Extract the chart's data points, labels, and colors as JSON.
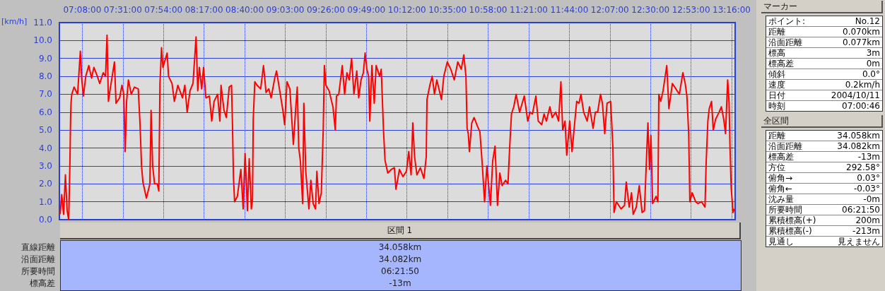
{
  "chart_data": [
    {
      "type": "line",
      "ylabel": "[km/h]",
      "color": "#ff0000",
      "marker": "none",
      "line_style": "solid",
      "grid": true,
      "xlim": [
        6.917,
        13.3
      ],
      "ylim": [
        0,
        11
      ],
      "xticks": [
        {
          "value": 7.1333,
          "label": "07:08:00"
        },
        {
          "value": 7.5167,
          "label": "07:31:00"
        },
        {
          "value": 7.9,
          "label": "07:54:00"
        },
        {
          "value": 8.2833,
          "label": "08:17:00"
        },
        {
          "value": 8.6667,
          "label": "08:40:00"
        },
        {
          "value": 9.05,
          "label": "09:03:00"
        },
        {
          "value": 9.4333,
          "label": "09:26:00"
        },
        {
          "value": 9.8167,
          "label": "09:49:00"
        },
        {
          "value": 10.2,
          "label": "10:12:00"
        },
        {
          "value": 10.5833,
          "label": "10:35:00"
        },
        {
          "value": 10.9667,
          "label": "10:58:00"
        },
        {
          "value": 11.35,
          "label": "11:21:00"
        },
        {
          "value": 11.7333,
          "label": "11:44:00"
        },
        {
          "value": 12.1167,
          "label": "12:07:00"
        },
        {
          "value": 12.5,
          "label": "12:30:00"
        },
        {
          "value": 12.8833,
          "label": "12:53:00"
        },
        {
          "value": 13.2667,
          "label": "13:16:00"
        }
      ],
      "yticks": [
        {
          "value": 0,
          "label": "0.0"
        },
        {
          "value": 1,
          "label": "1.0"
        },
        {
          "value": 2,
          "label": "2.0"
        },
        {
          "value": 3,
          "label": "3.0"
        },
        {
          "value": 4,
          "label": "4.0"
        },
        {
          "value": 5,
          "label": "5.0"
        },
        {
          "value": 6,
          "label": "6.0"
        },
        {
          "value": 7,
          "label": "7.0"
        },
        {
          "value": 8,
          "label": "8.0"
        },
        {
          "value": 9,
          "label": "9.0"
        },
        {
          "value": 10,
          "label": "10.0"
        },
        {
          "value": 11,
          "label": "11.0"
        }
      ],
      "x": [
        6.924,
        6.939,
        6.957,
        6.974,
        6.99,
        7.005,
        7.016,
        7.023,
        7.027,
        7.034,
        7.056,
        7.089,
        7.115,
        7.129,
        7.144,
        7.166,
        7.195,
        7.221,
        7.243,
        7.276,
        7.298,
        7.331,
        7.353,
        7.367,
        7.38,
        7.397,
        7.437,
        7.452,
        7.486,
        7.508,
        7.525,
        7.538,
        7.552,
        7.569,
        7.596,
        7.626,
        7.662,
        7.679,
        7.693,
        7.706,
        7.739,
        7.772,
        7.783,
        7.798,
        7.816,
        7.842,
        7.856,
        7.867,
        7.882,
        7.895,
        7.935,
        7.948,
        7.981,
        8.003,
        8.036,
        8.08,
        8.102,
        8.124,
        8.151,
        8.179,
        8.208,
        8.224,
        8.239,
        8.261,
        8.279,
        8.301,
        8.334,
        8.356,
        8.378,
        8.411,
        8.433,
        8.444,
        8.472,
        8.494,
        8.521,
        8.543,
        8.552,
        8.561,
        8.572,
        8.598,
        8.631,
        8.653,
        8.671,
        8.693,
        8.71,
        8.73,
        8.741,
        8.748,
        8.763,
        8.785,
        8.818,
        8.845,
        8.869,
        8.895,
        8.917,
        8.951,
        8.968,
        9.001,
        9.028,
        9.045,
        9.067,
        9.094,
        9.127,
        9.149,
        9.164,
        9.178,
        9.193,
        9.215,
        9.226,
        9.244,
        9.274,
        9.292,
        9.314,
        9.336,
        9.349,
        9.369,
        9.391,
        9.409,
        9.42,
        9.435,
        9.464,
        9.501,
        9.523,
        9.534,
        9.556,
        9.589,
        9.611,
        9.633,
        9.655,
        9.677,
        9.699,
        9.726,
        9.744,
        9.766,
        9.788,
        9.805,
        9.821,
        9.838,
        9.849,
        9.869,
        9.891,
        9.909,
        9.942,
        9.957,
        9.979,
        9.993,
        10.019,
        10.052,
        10.081,
        10.096,
        10.129,
        10.162,
        10.195,
        10.217,
        10.239,
        10.255,
        10.272,
        10.294,
        10.327,
        10.36,
        10.382,
        10.389,
        10.416,
        10.438,
        10.46,
        10.482,
        10.526,
        10.548,
        10.581,
        10.614,
        10.647,
        10.68,
        10.713,
        10.737,
        10.757,
        10.768,
        10.779,
        10.79,
        10.812,
        10.834,
        10.867,
        10.889,
        10.911,
        10.933,
        10.955,
        10.988,
        11.01,
        11.032,
        11.055,
        11.077,
        11.099,
        11.132,
        11.154,
        11.169,
        11.187,
        11.209,
        11.231,
        11.264,
        11.308,
        11.341,
        11.363,
        11.385,
        11.418,
        11.44,
        11.473,
        11.495,
        11.517,
        11.55,
        11.572,
        11.605,
        11.632,
        11.654,
        11.671,
        11.693,
        11.709,
        11.737,
        11.759,
        11.781,
        11.803,
        11.825,
        11.843,
        11.869,
        11.902,
        11.924,
        11.958,
        11.979,
        12.001,
        12.028,
        12.046,
        12.068,
        12.09,
        12.123,
        12.134,
        12.145,
        12.156,
        12.178,
        12.222,
        12.255,
        12.271,
        12.299,
        12.321,
        12.337,
        12.366,
        12.394,
        12.421,
        12.443,
        12.465,
        12.476,
        12.491,
        12.504,
        12.52,
        12.553,
        12.57,
        12.579,
        12.597,
        12.619,
        12.654,
        12.674,
        12.707,
        12.74,
        12.773,
        12.806,
        12.828,
        12.844,
        12.861,
        12.872,
        12.894,
        12.927,
        12.949,
        12.982,
        13.015,
        13.026,
        13.042,
        13.055,
        13.077,
        13.093,
        13.115,
        13.148,
        13.17,
        13.192,
        13.209,
        13.229,
        13.242,
        13.251,
        13.262,
        13.28,
        13.291
      ],
      "values": [
        0.3,
        1.4,
        0.3,
        2.5,
        0.5,
        0.0,
        3.0,
        5.7,
        6.5,
        7.0,
        7.4,
        7.0,
        9.4,
        7.8,
        6.9,
        8.0,
        8.6,
        7.9,
        8.5,
        8.0,
        7.6,
        8.2,
        8.0,
        10.3,
        6.6,
        7.3,
        8.8,
        6.5,
        6.8,
        7.5,
        7.0,
        3.8,
        6.6,
        7.8,
        7.0,
        7.4,
        7.3,
        5.3,
        3.0,
        2.1,
        1.2,
        2.0,
        6.1,
        3.0,
        2.0,
        2.0,
        1.6,
        7.6,
        9.6,
        8.5,
        9.3,
        8.0,
        7.6,
        6.6,
        7.5,
        6.8,
        7.5,
        6.0,
        7.2,
        7.6,
        10.2,
        7.2,
        8.5,
        7.3,
        8.5,
        6.8,
        6.9,
        5.5,
        6.6,
        7.0,
        5.5,
        7.5,
        6.1,
        5.7,
        7.4,
        7.5,
        5.3,
        2.4,
        1.0,
        1.3,
        2.8,
        0.6,
        3.7,
        0.5,
        3.4,
        0.6,
        1.1,
        5.6,
        7.7,
        7.5,
        7.3,
        8.6,
        7.1,
        7.3,
        6.8,
        7.9,
        8.3,
        7.1,
        6.1,
        5.3,
        7.7,
        7.3,
        4.2,
        6.2,
        7.4,
        4.0,
        3.3,
        0.9,
        6.5,
        2.7,
        0.6,
        2.2,
        0.9,
        0.6,
        2.7,
        0.9,
        1.5,
        5.0,
        8.6,
        7.5,
        7.2,
        6.3,
        5.0,
        6.9,
        7.0,
        8.6,
        7.0,
        8.2,
        7.8,
        9.0,
        7.0,
        8.3,
        6.8,
        7.8,
        8.2,
        9.3,
        8.4,
        8.0,
        5.5,
        8.6,
        6.5,
        8.6,
        8.0,
        8.4,
        4.9,
        3.3,
        2.6,
        2.8,
        2.9,
        1.7,
        2.8,
        2.4,
        2.7,
        3.8,
        2.5,
        5.4,
        3.5,
        2.5,
        2.9,
        2.3,
        3.5,
        6.7,
        7.5,
        8.0,
        7.0,
        7.8,
        6.7,
        8.0,
        8.8,
        8.4,
        7.8,
        8.8,
        8.4,
        9.2,
        8.0,
        5.1,
        4.8,
        3.8,
        5.4,
        5.7,
        5.2,
        4.9,
        3.1,
        1.0,
        3.0,
        0.8,
        3.3,
        4.1,
        0.8,
        2.6,
        1.9,
        2.2,
        2.0,
        3.9,
        5.9,
        6.3,
        7.0,
        6.0,
        6.9,
        5.5,
        6.0,
        5.9,
        6.9,
        5.5,
        5.3,
        5.9,
        5.5,
        6.3,
        5.7,
        6.0,
        5.5,
        7.7,
        5.0,
        5.5,
        3.6,
        5.5,
        3.8,
        5.2,
        6.6,
        6.5,
        7.0,
        6.0,
        5.5,
        6.3,
        5.1,
        6.0,
        6.0,
        7.0,
        6.5,
        4.8,
        6.5,
        6.6,
        5.4,
        4.0,
        0.4,
        1.0,
        0.6,
        0.8,
        2.1,
        0.7,
        1.5,
        0.3,
        0.7,
        1.9,
        0.4,
        0.5,
        3.8,
        5.4,
        2.8,
        4.7,
        0.9,
        1.3,
        1.0,
        7.0,
        6.6,
        7.2,
        8.6,
        6.2,
        7.6,
        7.3,
        7.0,
        8.2,
        7.6,
        6.9,
        4.8,
        1.0,
        1.5,
        1.0,
        0.9,
        1.0,
        0.7,
        3.2,
        5.5,
        6.2,
        6.6,
        5.0,
        5.6,
        6.0,
        6.3,
        5.6,
        4.8,
        7.8,
        6.6,
        4.1,
        1.8,
        0.4,
        0.6
      ]
    },
    {
      "type": "other",
      "title": "マーカー",
      "annotations": [
        "ポイント:",
        "No.12",
        "距離",
        "0.070km",
        "沿面距離",
        "0.077km",
        "標高",
        "3m",
        "標高差",
        "0m",
        "傾斜",
        "0.0°",
        "速度",
        "0.2km/h",
        "日付",
        "2004/10/11",
        "時刻",
        "07:00:46"
      ]
    },
    {
      "type": "other",
      "title": "全区間",
      "annotations": [
        "距離",
        "34.058km",
        "沿面距離",
        "34.082km",
        "標高差",
        "-13m",
        "方位",
        "292.58°",
        "俯角→",
        "0.03°",
        "俯角←",
        "-0.03°",
        "沈み量",
        "-0m",
        "所要時間",
        "06:21:50",
        "累積標高(+)",
        "200m",
        "累積標高(-)",
        "-213m",
        "見通し",
        "見えません"
      ]
    },
    {
      "type": "other",
      "title": "区間 1",
      "annotations": [
        "直線距離",
        "34.058km",
        "沿面距離",
        "34.082km",
        "所要時間",
        "06:21:50",
        "標高差",
        "-13m"
      ]
    }
  ]
}
